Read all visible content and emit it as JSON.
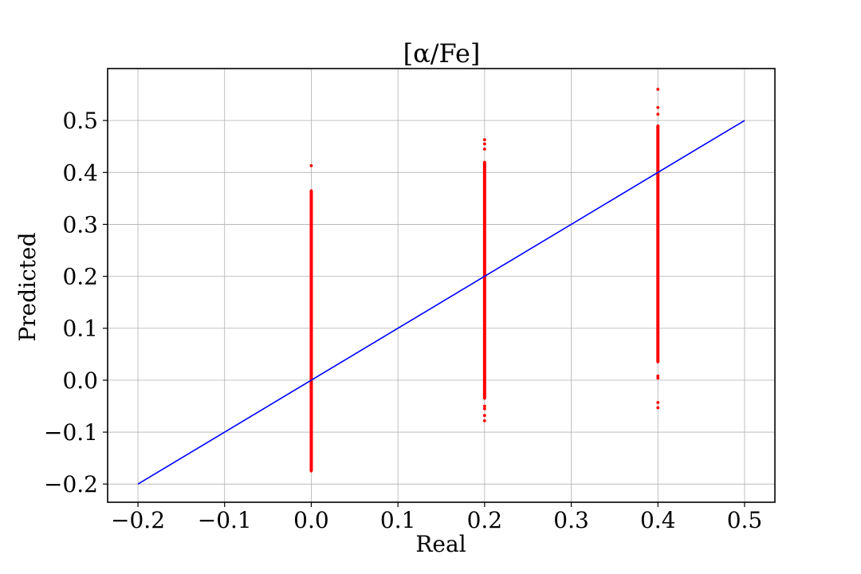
{
  "chart_data": {
    "type": "scatter",
    "title": "[α/Fe]",
    "xlabel": "Real",
    "ylabel": "Predicted",
    "xlim": [
      -0.235,
      0.535
    ],
    "ylim": [
      -0.235,
      0.6
    ],
    "x_ticks": [
      -0.2,
      -0.1,
      0.0,
      0.1,
      0.2,
      0.3,
      0.4,
      0.5
    ],
    "x_tick_labels": [
      "−0.2",
      "−0.1",
      "0.0",
      "0.1",
      "0.2",
      "0.3",
      "0.4",
      "0.5"
    ],
    "y_ticks": [
      -0.2,
      -0.1,
      0.0,
      0.1,
      0.2,
      0.3,
      0.4,
      0.5
    ],
    "y_tick_labels": [
      "−0.2",
      "−0.1",
      "0.0",
      "0.1",
      "0.2",
      "0.3",
      "0.4",
      "0.5"
    ],
    "grid": true,
    "series": [
      {
        "kind": "scatter",
        "color": "#ff0000",
        "groups": [
          {
            "x": 0.0,
            "y_min": -0.175,
            "y_max": 0.365,
            "outliers": [
              0.413,
              0.362
            ]
          },
          {
            "x": 0.2,
            "y_min": -0.035,
            "y_max": 0.42,
            "outliers": [
              0.463,
              0.455,
              0.445,
              -0.05,
              -0.055,
              -0.068,
              -0.078
            ]
          },
          {
            "x": 0.4,
            "y_min": 0.035,
            "y_max": 0.49,
            "outliers": [
              0.56,
              0.525,
              0.512,
              0.008,
              0.004,
              -0.043,
              -0.053
            ]
          }
        ]
      },
      {
        "kind": "line",
        "color": "#0000ff",
        "x": [
          -0.2,
          0.5
        ],
        "y": [
          -0.2,
          0.5
        ]
      }
    ]
  }
}
